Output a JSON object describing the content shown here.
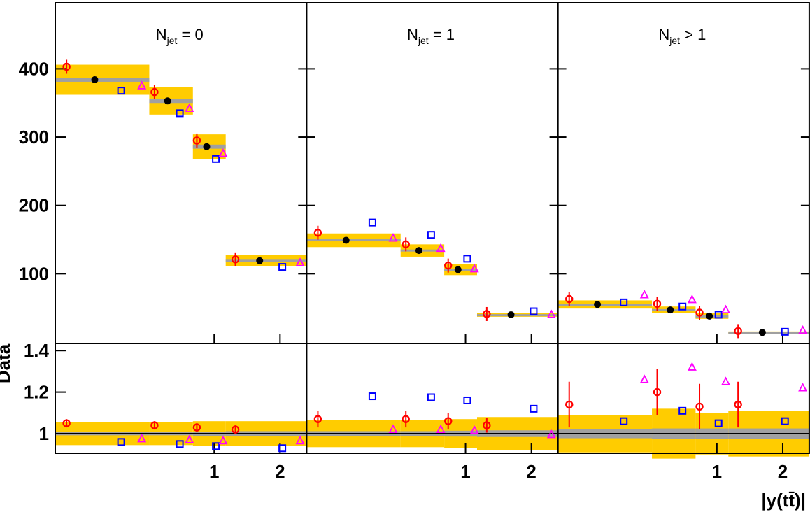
{
  "chart_data": {
    "type": "scatter",
    "xlabel": "|y(tt̄)|",
    "ylabel_ratio": "Data",
    "panels": [
      {
        "title_main": "N",
        "title_sub": "jet",
        "title_rel": " = 0",
        "bins": [
          [
            0,
            0.35
          ],
          [
            0.35,
            0.75
          ],
          [
            0.75,
            1.15
          ],
          [
            1.15,
            2.5
          ]
        ],
        "data": [
          384,
          353,
          286,
          119
        ],
        "model_circle": [
          403,
          366,
          295,
          121
        ],
        "model_square": [
          368,
          335,
          268,
          110
        ],
        "model_triangle": [
          375,
          342,
          276,
          116
        ],
        "unc_band": [
          22,
          20,
          18,
          8
        ],
        "stat_band": [
          3,
          3,
          3,
          1.5
        ],
        "ratio_circle": [
          1.05,
          1.04,
          1.03,
          1.02
        ],
        "ratio_circle_err": [
          0.02,
          0.02,
          0.02,
          0.02
        ],
        "ratio_square": [
          0.96,
          0.95,
          0.94,
          0.93
        ],
        "ratio_triangle": [
          0.975,
          0.97,
          0.965,
          0.965
        ],
        "ratio_unc_band": [
          0.055,
          0.055,
          0.06,
          0.06
        ],
        "ratio_stat_band": [
          0.008,
          0.008,
          0.01,
          0.012
        ]
      },
      {
        "title_main": "N",
        "title_sub": "jet",
        "title_rel": " = 1",
        "bins": [
          [
            0,
            0.35
          ],
          [
            0.35,
            0.75
          ],
          [
            0.75,
            1.15
          ],
          [
            1.15,
            2.5
          ]
        ],
        "data": [
          149,
          134,
          106,
          40
        ],
        "model_circle": [
          160,
          143,
          112,
          41
        ],
        "model_square": [
          175,
          157,
          122,
          45
        ],
        "model_triangle": [
          152,
          137,
          107,
          40
        ],
        "unc_band": [
          10,
          9,
          8,
          3
        ],
        "stat_band": [
          1.5,
          1.5,
          1.5,
          0.8
        ],
        "ratio_circle": [
          1.07,
          1.07,
          1.06,
          1.04
        ],
        "ratio_circle_err": [
          0.04,
          0.04,
          0.04,
          0.035
        ],
        "ratio_square": [
          1.18,
          1.175,
          1.16,
          1.12
        ],
        "ratio_triangle": [
          1.02,
          1.02,
          1.015,
          0.995
        ],
        "ratio_unc_band": [
          0.065,
          0.065,
          0.07,
          0.08
        ],
        "ratio_stat_band": [
          0.012,
          0.012,
          0.014,
          0.016
        ]
      },
      {
        "title_main": "N",
        "title_sub": "jet",
        "title_rel": " > 1",
        "bins": [
          [
            0,
            0.35
          ],
          [
            0.35,
            0.75
          ],
          [
            0.75,
            1.15
          ],
          [
            1.15,
            2.5
          ]
        ],
        "data": [
          55,
          47,
          38,
          14
        ],
        "model_circle": [
          63,
          56,
          43,
          16
        ],
        "model_square": [
          58,
          52,
          40,
          15
        ],
        "model_triangle": [
          69,
          62,
          47,
          17
        ],
        "unc_band": [
          6,
          5,
          4,
          1.5
        ],
        "stat_band": [
          1.2,
          1.2,
          1,
          0.6
        ],
        "ratio_circle": [
          1.14,
          1.2,
          1.13,
          1.14
        ],
        "ratio_circle_err": [
          0.11,
          0.11,
          0.11,
          0.11
        ],
        "ratio_square": [
          1.06,
          1.11,
          1.05,
          1.06
        ],
        "ratio_triangle": [
          1.26,
          1.32,
          1.25,
          1.22
        ],
        "ratio_unc_band": [
          0.09,
          0.12,
          0.1,
          0.11
        ],
        "ratio_stat_band": [
          0.022,
          0.025,
          0.025,
          0.025
        ]
      }
    ],
    "ylim_top": [
      0,
      450
    ],
    "yticks_top": [
      "100",
      "200",
      "300",
      "400"
    ],
    "ylim_ratio": [
      0.9,
      1.45
    ],
    "yticks_ratio": [
      "1",
      "1.2",
      "1.4"
    ],
    "xticks": [
      "1",
      "2"
    ],
    "x_axis_scale": "sqrt",
    "colors": {
      "band": "#ffcc00",
      "stat": "#a0a0a0",
      "data": "#000000",
      "circle": "#ff0000",
      "square": "#0000ff",
      "triangle": "#ff00ff"
    }
  }
}
